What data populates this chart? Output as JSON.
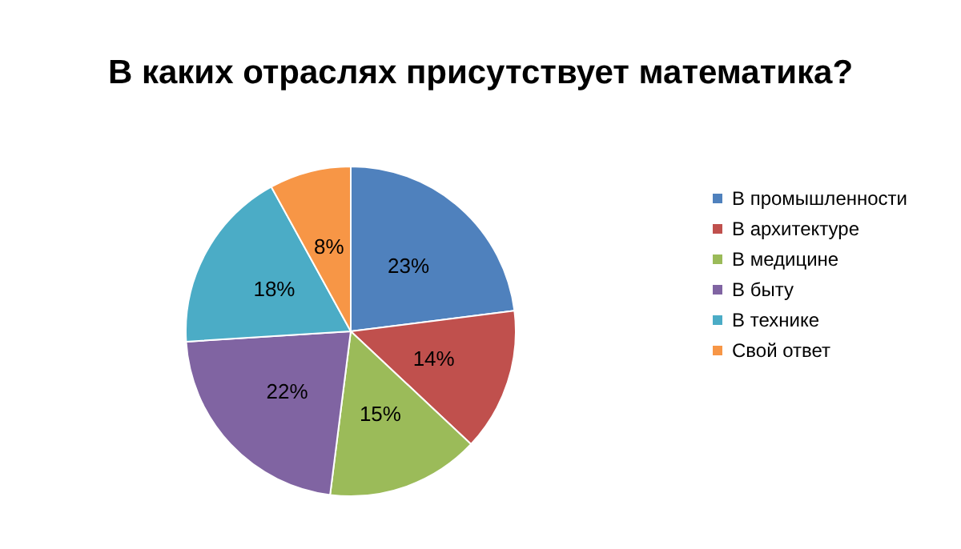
{
  "chart_data": {
    "type": "pie",
    "title": "В каких отраслях присутствует математика?",
    "categories": [
      "В промышленности",
      "В архитектуре",
      "В медицине",
      "В быту",
      "В технике",
      "Свой ответ"
    ],
    "values": [
      23,
      14,
      15,
      22,
      18,
      8
    ],
    "value_labels": [
      "23%",
      "14%",
      "15%",
      "22%",
      "18%",
      "8%"
    ],
    "colors": [
      "#4f81bd",
      "#c0504d",
      "#9bbb59",
      "#8064a2",
      "#4bacc6",
      "#f79646"
    ],
    "legend": "right"
  }
}
